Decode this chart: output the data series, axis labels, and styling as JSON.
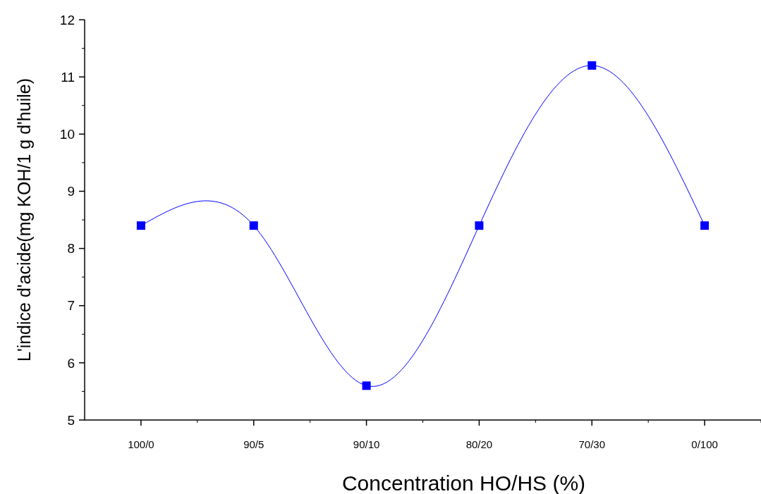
{
  "chart_data": {
    "type": "line",
    "xlabel": "Concentration HO/HS (%)",
    "ylabel": "L'indice d'acide(mg KOH/1 g d'huile)",
    "categories": [
      "100/0",
      "90/5",
      "90/10",
      "80/20",
      "70/30",
      "0/100"
    ],
    "series": [
      {
        "color": "#0000ff",
        "values": [
          8.4,
          8.4,
          5.6,
          8.4,
          11.2,
          8.4
        ]
      }
    ],
    "ylim": [
      5,
      12
    ],
    "yticks": [
      5,
      6,
      7,
      8,
      9,
      10,
      11,
      12
    ],
    "marker": "square",
    "line_style": "solid",
    "grid": false
  }
}
